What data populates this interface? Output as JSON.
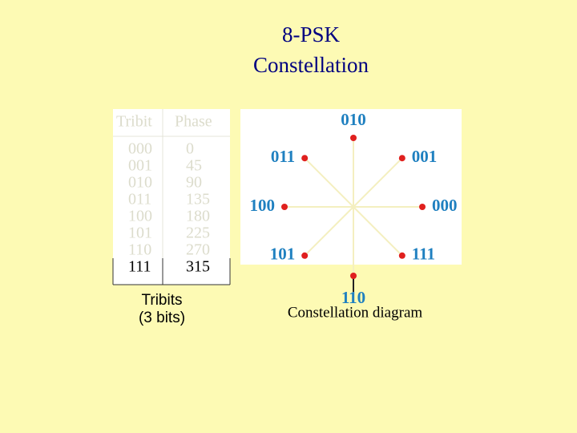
{
  "title": [
    "8-PSK",
    "Constellation"
  ],
  "table": {
    "header": [
      "Tribit",
      "Phase"
    ],
    "rows": [
      [
        "000",
        "0"
      ],
      [
        "001",
        "45"
      ],
      [
        "010",
        "90"
      ],
      [
        "011",
        "135"
      ],
      [
        "100",
        "180"
      ],
      [
        "101",
        "225"
      ],
      [
        "110",
        "270"
      ],
      [
        "111",
        "315"
      ]
    ],
    "caption": [
      "Tribits",
      "(3 bits)"
    ]
  },
  "constellation": {
    "caption": "Constellation diagram"
  }
}
